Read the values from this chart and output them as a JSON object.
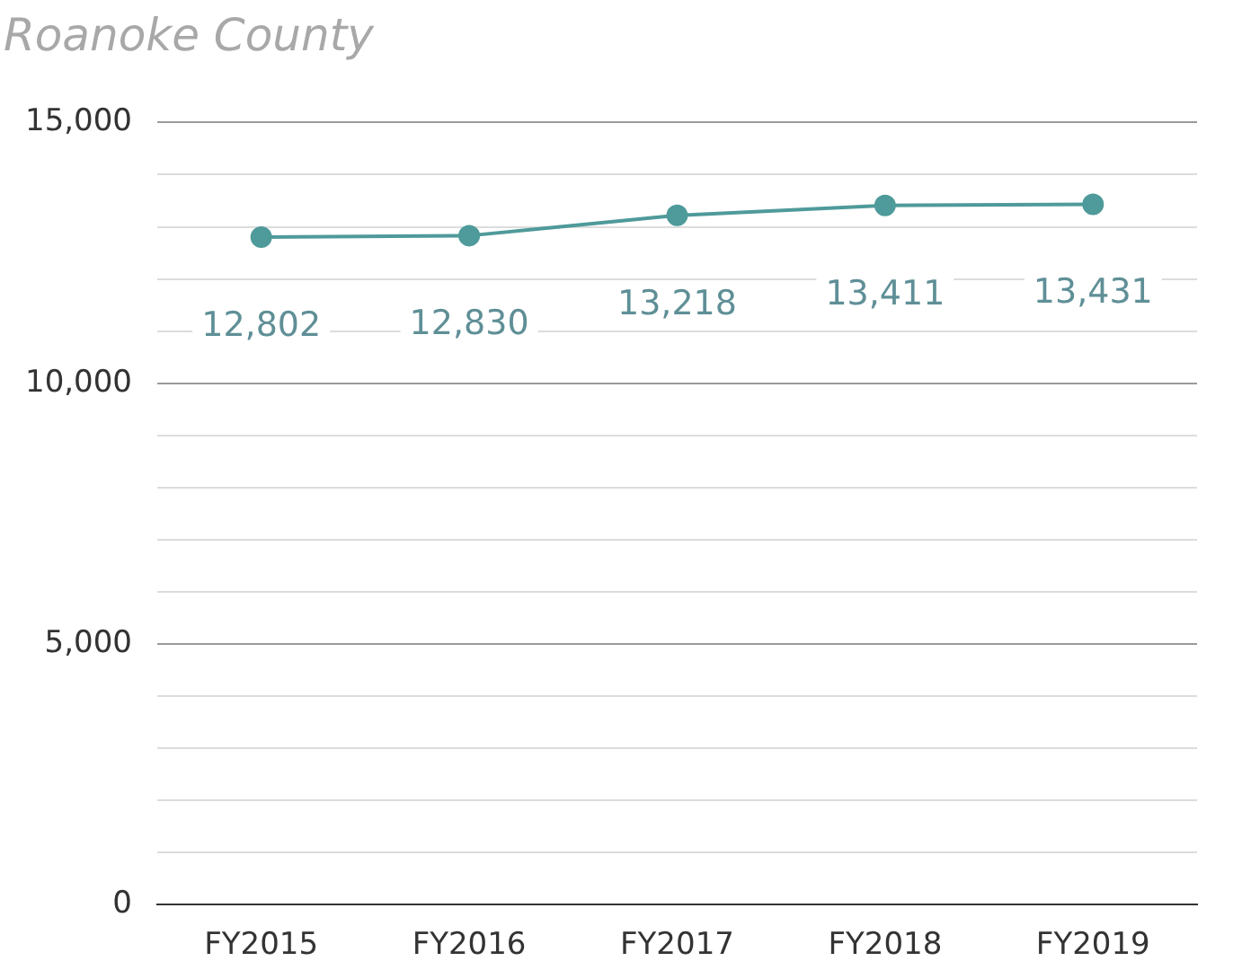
{
  "chart_data": {
    "type": "line",
    "title": "Roanoke County",
    "categories": [
      "FY2015",
      "FY2016",
      "FY2017",
      "FY2018",
      "FY2019"
    ],
    "series": [
      {
        "color": "#4f9a9a",
        "values": [
          12802,
          12830,
          13218,
          13411,
          13431
        ],
        "value_labels": [
          "12,802",
          "12,830",
          "13,218",
          "13,411",
          "13,431"
        ]
      }
    ],
    "ylim": [
      0,
      15000
    ],
    "yticks": [
      0,
      {
        "value": 1000,
        "label": null
      },
      {
        "value": 2000,
        "label": null
      },
      {
        "value": 3000,
        "label": null
      },
      {
        "value": 4000,
        "label": null
      },
      {
        "value": 5000,
        "label": "5,000"
      },
      {
        "value": 6000,
        "label": null
      },
      {
        "value": 7000,
        "label": null
      },
      {
        "value": 8000,
        "label": null
      },
      {
        "value": 9000,
        "label": null
      },
      {
        "value": 10000,
        "label": "10,000"
      },
      {
        "value": 11000,
        "label": null
      },
      {
        "value": 12000,
        "label": null
      },
      {
        "value": 13000,
        "label": null
      },
      {
        "value": 14000,
        "label": null
      },
      {
        "value": 15000,
        "label": "15,000"
      }
    ],
    "grid": "y",
    "marker": "circle",
    "legend": false
  }
}
